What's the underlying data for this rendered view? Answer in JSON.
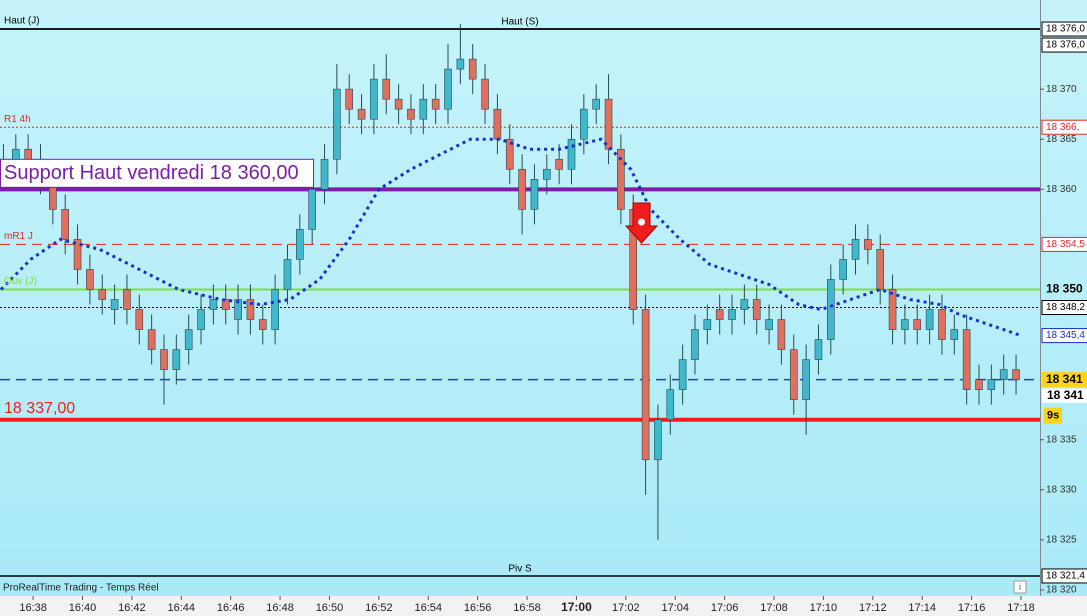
{
  "chart_data": {
    "type": "candlestick",
    "xlim": [
      996.66,
      1038.77
    ],
    "ylim": [
      18319.5,
      18378.9
    ],
    "yticks": [
      {
        "value": 18370,
        "label": "18 370"
      },
      {
        "value": 18365,
        "label": "18 365"
      },
      {
        "value": 18360,
        "label": "18 360"
      },
      {
        "value": 18335,
        "label": "18 335"
      },
      {
        "value": 18330,
        "label": "18 330"
      },
      {
        "value": 18325,
        "label": "18 325"
      },
      {
        "value": 18320,
        "label": "18 320"
      }
    ],
    "xticks": [
      {
        "value": 998,
        "label": "16:38"
      },
      {
        "value": 1000,
        "label": "16:40"
      },
      {
        "value": 1002,
        "label": "16:42"
      },
      {
        "value": 1004,
        "label": "16:44"
      },
      {
        "value": 1006,
        "label": "16:46"
      },
      {
        "value": 1008,
        "label": "16:48"
      },
      {
        "value": 1010,
        "label": "16:50"
      },
      {
        "value": 1012,
        "label": "16:52"
      },
      {
        "value": 1014,
        "label": "16:54"
      },
      {
        "value": 1016,
        "label": "16:56"
      },
      {
        "value": 1018,
        "label": "16:58"
      },
      {
        "value": 1020,
        "label": "17:00"
      },
      {
        "value": 1022,
        "label": "17:02"
      },
      {
        "value": 1024,
        "label": "17:04"
      },
      {
        "value": 1026,
        "label": "17:06"
      },
      {
        "value": 1028,
        "label": "17:08"
      },
      {
        "value": 1030,
        "label": "17:10"
      },
      {
        "value": 1032,
        "label": "17:12"
      },
      {
        "value": 1034,
        "label": "17:14"
      },
      {
        "value": 1036,
        "label": "17:16"
      },
      {
        "value": 1038,
        "label": "17:18"
      }
    ],
    "bold_xtick": 1020,
    "up_color": "#3fb8cc",
    "down_color": "#e0705e",
    "x": [
      996.8,
      997.3,
      997.8,
      998.3,
      998.8,
      999.3,
      999.8,
      1000.3,
      1000.8,
      1001.3,
      1001.8,
      1002.3,
      1002.8,
      1003.3,
      1003.8,
      1004.3,
      1004.8,
      1005.3,
      1005.8,
      1006.3,
      1006.8,
      1007.3,
      1007.8,
      1008.3,
      1008.8,
      1009.3,
      1009.8,
      1010.3,
      1010.8,
      1011.3,
      1011.8,
      1012.3,
      1012.8,
      1013.3,
      1013.8,
      1014.3,
      1014.8,
      1015.3,
      1015.8,
      1016.3,
      1016.8,
      1017.3,
      1017.8,
      1018.3,
      1018.8,
      1019.3,
      1019.8,
      1020.3,
      1020.8,
      1021.3,
      1021.8,
      1022.3,
      1022.8,
      1023.3,
      1023.8,
      1024.3,
      1024.8,
      1025.3,
      1025.8,
      1026.3,
      1026.8,
      1027.3,
      1027.8,
      1028.3,
      1028.8,
      1029.3,
      1029.8,
      1030.3,
      1030.8,
      1031.3,
      1031.8,
      1032.3,
      1032.8,
      1033.3,
      1033.8,
      1034.3,
      1034.8,
      1035.3,
      1035.8,
      1036.3,
      1036.8,
      1037.3,
      1037.8
    ],
    "open": [
      18363,
      18362,
      18364,
      18363,
      18361,
      18358,
      18355,
      18352,
      18350,
      18348,
      18350,
      18348,
      18346,
      18344,
      18342,
      18344,
      18346,
      18348,
      18349,
      18347,
      18349,
      18347,
      18346,
      18350,
      18353,
      18356,
      18360,
      18363,
      18370,
      18368,
      18367,
      18371,
      18369,
      18368,
      18367,
      18369,
      18368,
      18372,
      18373,
      18371,
      18368,
      18365,
      18362,
      18358,
      18361,
      18363,
      18362,
      18365,
      18368,
      18369,
      18364,
      18358,
      18348,
      18333,
      18337,
      18340,
      18343,
      18346,
      18348,
      18347,
      18348,
      18349,
      18346,
      18347,
      18344,
      18339,
      18343,
      18345,
      18351,
      18353,
      18355,
      18354,
      18350,
      18346,
      18347,
      18346,
      18348,
      18345,
      18346,
      18341,
      18340,
      18341,
      18342
    ],
    "high": [
      18364.5,
      18365.5,
      18365.5,
      18364.5,
      18362.5,
      18359.5,
      18356.5,
      18353.5,
      18351.5,
      18350.5,
      18351.5,
      18349.5,
      18347.5,
      18345.5,
      18345.5,
      18347.5,
      18349.5,
      18350.5,
      18350.5,
      18350.5,
      18350.5,
      18348.5,
      18351.5,
      18354.5,
      18357.5,
      18361.5,
      18364.5,
      18372.5,
      18371.5,
      18369.5,
      18372.5,
      18373.5,
      18370.5,
      18369.5,
      18370.5,
      18370.5,
      18374.5,
      18376.5,
      18374.5,
      18372.5,
      18369.5,
      18366.5,
      18363.5,
      18362.5,
      18363.5,
      18364.5,
      18366.5,
      18369.5,
      18370.5,
      18371.5,
      18365.5,
      18359.5,
      18349.5,
      18338.5,
      18341.5,
      18344.5,
      18347.5,
      18348.5,
      18349.5,
      18349.5,
      18350.5,
      18350.5,
      18348.5,
      18348.5,
      18345.5,
      18344.5,
      18346.5,
      18352.5,
      18354.5,
      18356.5,
      18356.5,
      18355.5,
      18351.5,
      18348.5,
      18348.5,
      18349.5,
      18349.5,
      18347.5,
      18347.5,
      18342.5,
      18342.5,
      18343.5,
      18343.5
    ],
    "low": [
      18360.5,
      18360.5,
      18361.5,
      18359.5,
      18356.5,
      18353.5,
      18350.5,
      18348.5,
      18347.5,
      18346.5,
      18346.5,
      18344.5,
      18342.5,
      18338.5,
      18340.5,
      18342.5,
      18344.5,
      18346.5,
      18346.5,
      18345.5,
      18345.5,
      18344.5,
      18344.5,
      18348.5,
      18351.5,
      18354.5,
      18358.5,
      18361.5,
      18366.5,
      18365.5,
      18365.5,
      18367.5,
      18366.5,
      18365.5,
      18365.5,
      18366.5,
      18366.5,
      18370.5,
      18369.5,
      18366.5,
      18363.5,
      18360.5,
      18355.5,
      18356.5,
      18359.5,
      18360.5,
      18360.5,
      18363.5,
      18366.5,
      18362.5,
      18356.5,
      18346.5,
      18329.5,
      18325.0,
      18335.5,
      18338.5,
      18341.5,
      18344.5,
      18345.5,
      18345.5,
      18346.5,
      18345.5,
      18344.5,
      18342.5,
      18337.5,
      18335.5,
      18341.5,
      18343.5,
      18349.5,
      18351.5,
      18352.5,
      18348.5,
      18344.5,
      18344.5,
      18344.5,
      18344.5,
      18343.5,
      18343.5,
      18338.5,
      18338.5,
      18338.5,
      18339.5,
      18339.5
    ],
    "close": [
      18362,
      18364,
      18363,
      18361,
      18358,
      18355,
      18352,
      18350,
      18349,
      18349,
      18348,
      18346,
      18344,
      18342,
      18344,
      18346,
      18348,
      18349,
      18348,
      18349,
      18347,
      18346,
      18350,
      18353,
      18356,
      18360,
      18363,
      18370,
      18368,
      18367,
      18371,
      18369,
      18368,
      18367,
      18369,
      18368,
      18372,
      18373,
      18371,
      18368,
      18365,
      18362,
      18358,
      18361,
      18362,
      18362,
      18365,
      18368,
      18369,
      18364,
      18358,
      18348,
      18333,
      18337,
      18340,
      18343,
      18346,
      18347,
      18347,
      18348,
      18349,
      18347,
      18347,
      18344,
      18339,
      18343,
      18345,
      18351,
      18353,
      18355,
      18354,
      18350,
      18346,
      18347,
      18346,
      18348,
      18345,
      18346,
      18340,
      18340,
      18341,
      18342,
      18341
    ],
    "moving_average": {
      "color": "#1a2fd0",
      "axis_label": "18 345,4",
      "x": [
        996.7,
        997.9,
        999.1,
        1000.7,
        1002.3,
        1003.9,
        1005.6,
        1007.2,
        1008.4,
        1009.6,
        1010.8,
        1012.0,
        1013.3,
        1014.5,
        1015.7,
        1016.9,
        1018.1,
        1019.3,
        1021.0,
        1022.2,
        1023.0,
        1024.2,
        1025.4,
        1026.6,
        1027.8,
        1029.0,
        1029.9,
        1031.1,
        1032.3,
        1033.5,
        1034.7,
        1035.5,
        1036.7,
        1038.0
      ],
      "values": [
        18350,
        18353,
        18355,
        18354,
        18352,
        18350,
        18349,
        18348.5,
        18349,
        18351,
        18355,
        18360,
        18362,
        18363.5,
        18365,
        18365,
        18364,
        18364,
        18365,
        18362,
        18358,
        18355,
        18352.5,
        18351.5,
        18350.5,
        18348.5,
        18348,
        18349,
        18350,
        18349,
        18348.5,
        18347.5,
        18346.5,
        18345.4
      ]
    },
    "levels": [
      {
        "value": 18376.0,
        "label": "Haut (J)",
        "axis_label": "18 376,0",
        "color": "#000000",
        "style": "solid",
        "width": 1.5
      },
      {
        "value": 18376.0,
        "label": "Haut (S)",
        "axis_label": "18 376,0",
        "color": "#000000",
        "style": "solid",
        "width": 1.5,
        "label_position": "center"
      },
      {
        "value": 18366.2,
        "label": "R1 4h",
        "axis_label": "18 366,",
        "color": "#e02828",
        "style": "dotted",
        "width": 1
      },
      {
        "value": 18360.0,
        "label": "Support Haut vendredi 18 360,00",
        "color": "#7a1fa6",
        "style": "solid",
        "width": 4,
        "label_box": true
      },
      {
        "value": 18354.5,
        "label": "mR1 J",
        "axis_label": "18 354,5",
        "color": "#e02828",
        "style": "dashed",
        "width": 1
      },
      {
        "value": 18350.0,
        "label": "Ouv (J)",
        "axis_label": "18 350",
        "color": "#7fe03a",
        "style": "solid",
        "width": 2
      },
      {
        "value": 18348.2,
        "axis_label": "18 348,2",
        "color": "#000000",
        "style": "dotted",
        "width": 1
      },
      {
        "value": 18341.0,
        "axis_label": "18 341",
        "color": "#1a3fe0",
        "style": "dashed",
        "width": 1.5,
        "axis_label_fill": "#ffd21f"
      },
      {
        "value": 18337.0,
        "label": "18 337,00",
        "color": "#ff1a1a",
        "style": "solid",
        "width": 4
      },
      {
        "value": 18321.4,
        "label": "Piv S",
        "axis_label": "18 321,4",
        "color": "#000000",
        "style": "solid",
        "width": 1.5,
        "label_position": "center"
      }
    ],
    "last_price": {
      "value": 18341,
      "label": "18 341",
      "countdown": "9s"
    },
    "footer": "ProRealTime Trading - Temps Réel"
  }
}
